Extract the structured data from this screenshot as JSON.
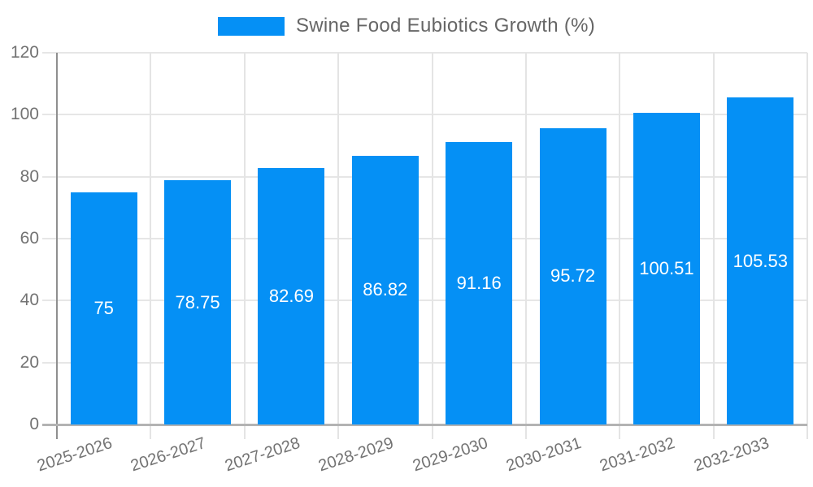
{
  "legend": {
    "label": "Swine Food Eubiotics Growth (%)",
    "swatch_color": "#0590f5"
  },
  "chart_data": {
    "type": "bar",
    "title": "Swine Food Eubiotics Growth (%)",
    "categories": [
      "2025-2026",
      "2026-2027",
      "2027-2028",
      "2028-2029",
      "2029-2030",
      "2030-2031",
      "2031-2032",
      "2032-2033"
    ],
    "values": [
      75,
      78.75,
      82.69,
      86.82,
      91.16,
      95.72,
      100.51,
      105.53
    ],
    "bar_labels": [
      "75",
      "78.75",
      "82.69",
      "86.82",
      "91.16",
      "95.72",
      "100.51",
      "105.53"
    ],
    "xlabel": "",
    "ylabel": "",
    "ylim": [
      0,
      120
    ],
    "yticks": [
      0,
      20,
      40,
      60,
      80,
      100,
      120
    ],
    "grid": true,
    "legend_position": "top-center",
    "bar_color": "#0590f5",
    "bar_value_label_color": "#ffffff",
    "grid_color": "#e6e6e6",
    "y_axis_color": "#8f8f8f",
    "x_axis_color": "#b3b3b3",
    "tick_label_color": "#737373",
    "title_color": "#666666",
    "background_color": "#ffffff"
  }
}
